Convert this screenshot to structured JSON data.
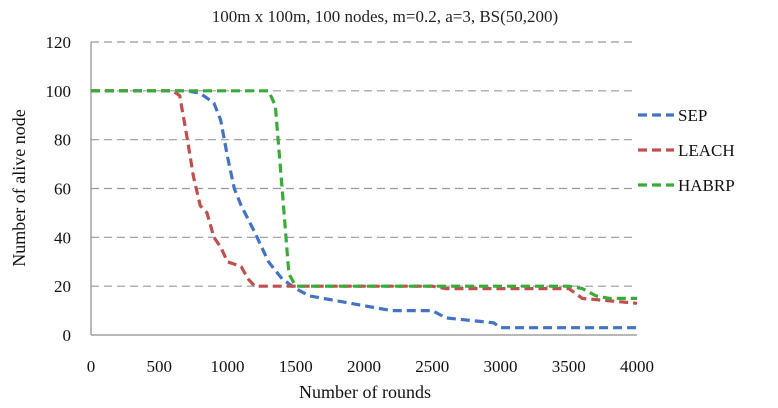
{
  "chart_data": {
    "type": "line",
    "title": "100m x 100m, 100 nodes, m=0.2, a=3, BS(50,200)",
    "xlabel": "Number of rounds",
    "ylabel": "Number of alive node",
    "xlim": [
      0,
      4000
    ],
    "ylim": [
      0,
      120
    ],
    "xticks": [
      0,
      500,
      1000,
      1500,
      2000,
      2500,
      3000,
      3500,
      4000
    ],
    "yticks": [
      0,
      20,
      40,
      60,
      80,
      100,
      120
    ],
    "grid": true,
    "legend_position": "right",
    "series": [
      {
        "name": "SEP",
        "color": "#4472c4",
        "x": [
          0,
          700,
          800,
          900,
          950,
          1000,
          1050,
          1100,
          1200,
          1300,
          1400,
          1500,
          1600,
          1800,
          2000,
          2200,
          2500,
          2600,
          2950,
          3000,
          3500,
          4000
        ],
        "y": [
          100,
          100,
          99,
          95,
          88,
          73,
          60,
          53,
          42,
          30,
          23,
          19,
          16,
          14,
          12,
          10,
          10,
          7,
          5,
          3,
          3,
          3
        ]
      },
      {
        "name": "LEACH",
        "color": "#c0504d",
        "x": [
          0,
          600,
          650,
          700,
          750,
          800,
          850,
          900,
          950,
          1000,
          1100,
          1150,
          1200,
          1500,
          2500,
          2600,
          3500,
          3600,
          4000
        ],
        "y": [
          100,
          100,
          98,
          82,
          65,
          53,
          50,
          40,
          36,
          30,
          28,
          23,
          20,
          20,
          20,
          19,
          19,
          15,
          13
        ]
      },
      {
        "name": "HABRP",
        "color": "#3aaa3a",
        "x": [
          0,
          1300,
          1350,
          1400,
          1450,
          1500,
          2500,
          3500,
          3600,
          3700,
          3800,
          4000
        ],
        "y": [
          100,
          100,
          94,
          60,
          25,
          20,
          20,
          20,
          19,
          16,
          15,
          15
        ]
      }
    ]
  }
}
